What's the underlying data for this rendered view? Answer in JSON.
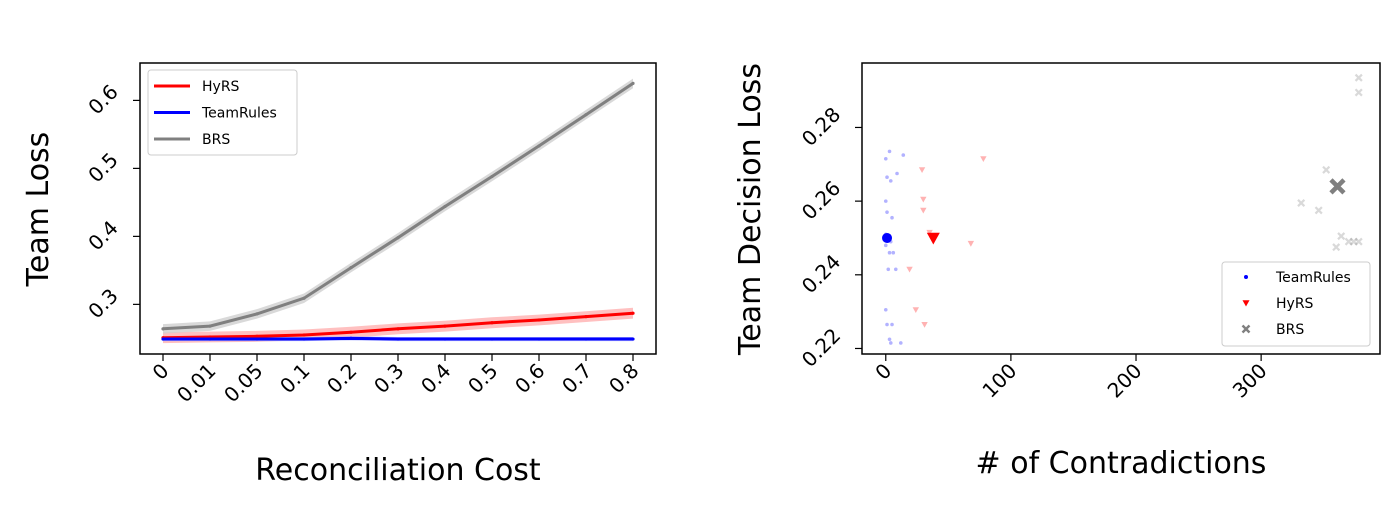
{
  "chart_data": [
    {
      "type": "line",
      "xlabel": "Reconciliation Cost",
      "ylabel": "Team Loss",
      "categories": [
        "0",
        "0.01",
        "0.05",
        "0.1",
        "0.2",
        "0.3",
        "0.4",
        "0.5",
        "0.6",
        "0.7",
        "0.8"
      ],
      "yticks": [
        0.3,
        0.4,
        0.5,
        0.6
      ],
      "ylim": [
        0.227,
        0.655
      ],
      "legend_position": "upper-left",
      "grid": false,
      "series": [
        {
          "name": "HyRS",
          "color": "#ff0000",
          "band_color": "#ffb0b0",
          "band": 0.008,
          "values": [
            0.251,
            0.252,
            0.253,
            0.255,
            0.259,
            0.264,
            0.268,
            0.273,
            0.277,
            0.282,
            0.287
          ]
        },
        {
          "name": "TeamRules",
          "color": "#0000ff",
          "band_color": "#aab0ff",
          "band": 0.003,
          "values": [
            0.249,
            0.249,
            0.249,
            0.249,
            0.25,
            0.249,
            0.249,
            0.249,
            0.249,
            0.249,
            0.249
          ]
        },
        {
          "name": "BRS",
          "color": "#808080",
          "band_color": "#d0d0d0",
          "band": 0.007,
          "values": [
            0.264,
            0.268,
            0.286,
            0.309,
            0.354,
            0.398,
            0.444,
            0.488,
            0.533,
            0.579,
            0.625
          ]
        }
      ]
    },
    {
      "type": "scatter",
      "xlabel": "# of Contradictions",
      "ylabel": "Team Decision Loss",
      "xticks": [
        0,
        100,
        200,
        300
      ],
      "yticks": [
        0.22,
        0.24,
        0.26,
        0.28
      ],
      "xlim": [
        -19,
        395
      ],
      "ylim": [
        0.2185,
        0.2975
      ],
      "legend_position": "lower-right",
      "grid": false,
      "series": [
        {
          "name": "TeamRules",
          "color": "#0000ff",
          "marker": "circle",
          "mean": [
            1,
            0.25
          ],
          "points": [
            [
              3,
              0.2735
            ],
            [
              14,
              0.2725
            ],
            [
              0,
              0.2715
            ],
            [
              9,
              0.2675
            ],
            [
              1,
              0.2665
            ],
            [
              4,
              0.2655
            ],
            [
              0,
              0.26
            ],
            [
              1,
              0.257
            ],
            [
              5,
              0.2555
            ],
            [
              0,
              0.251
            ],
            [
              2,
              0.25
            ],
            [
              4,
              0.249
            ],
            [
              0,
              0.248
            ],
            [
              6,
              0.246
            ],
            [
              3,
              0.246
            ],
            [
              2,
              0.2415
            ],
            [
              8,
              0.2415
            ],
            [
              0,
              0.2305
            ],
            [
              1,
              0.2265
            ],
            [
              5,
              0.2265
            ],
            [
              3,
              0.2225
            ],
            [
              12,
              0.2215
            ],
            [
              4,
              0.2215
            ]
          ]
        },
        {
          "name": "HyRS",
          "color": "#ff0000",
          "marker": "triangle-down",
          "mean": [
            38,
            0.25
          ],
          "points": [
            [
              29,
              0.2685
            ],
            [
              78,
              0.2715
            ],
            [
              30,
              0.2605
            ],
            [
              30,
              0.2575
            ],
            [
              35,
              0.2515
            ],
            [
              68,
              0.2485
            ],
            [
              19,
              0.2415
            ],
            [
              24,
              0.2305
            ],
            [
              31,
              0.2265
            ]
          ]
        },
        {
          "name": "BRS",
          "color": "#808080",
          "marker": "x",
          "mean": [
            361,
            0.264
          ],
          "points": [
            [
              378,
              0.2935
            ],
            [
              378,
              0.2895
            ],
            [
              352,
              0.2685
            ],
            [
              332,
              0.2595
            ],
            [
              346,
              0.2575
            ],
            [
              364,
              0.2505
            ],
            [
              370,
              0.249
            ],
            [
              374,
              0.249
            ],
            [
              378,
              0.249
            ],
            [
              360,
              0.2475
            ]
          ]
        }
      ]
    }
  ]
}
